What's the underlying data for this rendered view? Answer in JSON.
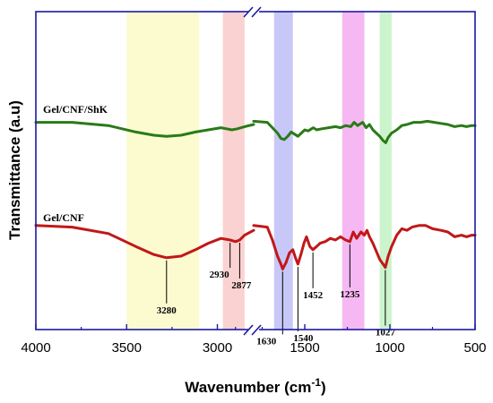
{
  "chart_data": {
    "type": "line",
    "title": "",
    "xlabel": "Wavenumber (cm",
    "xlabel_sup": "-1",
    "xlabel_close": ")",
    "ylabel": "Transmittance (a.u)",
    "x_axis": "reversed, broken",
    "x_segments": [
      [
        4000,
        2800
      ],
      [
        1800,
        500
      ]
    ],
    "x_ticks": [
      {
        "v": 4000,
        "label": "4000"
      },
      {
        "v": 3500,
        "label": "3500"
      },
      {
        "v": 3000,
        "label": "3000"
      },
      {
        "v": 1500,
        "label": "1500"
      },
      {
        "v": 1000,
        "label": "1000"
      },
      {
        "v": 500,
        "label": "500"
      }
    ],
    "y_ticks_shown": false,
    "grid": false,
    "legend": "none",
    "bands": [
      {
        "from": 3500,
        "to": 3100,
        "color": "#fbfbcf"
      },
      {
        "from": 2970,
        "to": 2850,
        "color": "#fbd2d2"
      },
      {
        "from": 1680,
        "to": 1570,
        "color": "#c8c8f8"
      },
      {
        "from": 1280,
        "to": 1150,
        "color": "#f6b8f2"
      },
      {
        "from": 1060,
        "to": 990,
        "color": "#ccf4cc"
      }
    ],
    "series": [
      {
        "name": "Gel/CNF/ShK",
        "color": "#2a7a18",
        "offset": 1.0,
        "segments": [
          [
            [
              4000,
              0.97
            ],
            [
              3800,
              0.97
            ],
            [
              3600,
              0.94
            ],
            [
              3450,
              0.88
            ],
            [
              3350,
              0.85
            ],
            [
              3280,
              0.84
            ],
            [
              3200,
              0.85
            ],
            [
              3120,
              0.88
            ],
            [
              3050,
              0.9
            ],
            [
              2980,
              0.92
            ],
            [
              2950,
              0.91
            ],
            [
              2920,
              0.9
            ],
            [
              2890,
              0.91
            ],
            [
              2850,
              0.93
            ],
            [
              2800,
              0.95
            ]
          ],
          [
            [
              1800,
              0.98
            ],
            [
              1720,
              0.97
            ],
            [
              1690,
              0.92
            ],
            [
              1660,
              0.87
            ],
            [
              1640,
              0.82
            ],
            [
              1620,
              0.81
            ],
            [
              1600,
              0.84
            ],
            [
              1580,
              0.88
            ],
            [
              1560,
              0.86
            ],
            [
              1540,
              0.84
            ],
            [
              1520,
              0.87
            ],
            [
              1500,
              0.9
            ],
            [
              1480,
              0.89
            ],
            [
              1460,
              0.91
            ],
            [
              1450,
              0.92
            ],
            [
              1430,
              0.9
            ],
            [
              1400,
              0.91
            ],
            [
              1360,
              0.92
            ],
            [
              1320,
              0.93
            ],
            [
              1290,
              0.92
            ],
            [
              1260,
              0.94
            ],
            [
              1230,
              0.93
            ],
            [
              1210,
              0.97
            ],
            [
              1190,
              0.94
            ],
            [
              1160,
              0.97
            ],
            [
              1140,
              0.92
            ],
            [
              1120,
              0.95
            ],
            [
              1100,
              0.9
            ],
            [
              1080,
              0.87
            ],
            [
              1060,
              0.84
            ],
            [
              1040,
              0.8
            ],
            [
              1025,
              0.78
            ],
            [
              1010,
              0.83
            ],
            [
              990,
              0.87
            ],
            [
              960,
              0.9
            ],
            [
              930,
              0.94
            ],
            [
              900,
              0.95
            ],
            [
              860,
              0.97
            ],
            [
              820,
              0.97
            ],
            [
              780,
              0.98
            ],
            [
              740,
              0.97
            ],
            [
              700,
              0.96
            ],
            [
              660,
              0.95
            ],
            [
              620,
              0.93
            ],
            [
              580,
              0.94
            ],
            [
              550,
              0.93
            ],
            [
              520,
              0.94
            ],
            [
              500,
              0.94
            ]
          ]
        ]
      },
      {
        "name": "Gel/CNF",
        "color": "#c01818",
        "offset": 0.0,
        "segments": [
          [
            [
              4000,
              0.99
            ],
            [
              3800,
              0.98
            ],
            [
              3600,
              0.94
            ],
            [
              3450,
              0.86
            ],
            [
              3350,
              0.81
            ],
            [
              3280,
              0.79
            ],
            [
              3200,
              0.8
            ],
            [
              3120,
              0.84
            ],
            [
              3050,
              0.88
            ],
            [
              2980,
              0.91
            ],
            [
              2930,
              0.9
            ],
            [
              2900,
              0.89
            ],
            [
              2877,
              0.9
            ],
            [
              2850,
              0.93
            ],
            [
              2800,
              0.96
            ]
          ],
          [
            [
              1800,
              0.99
            ],
            [
              1720,
              0.98
            ],
            [
              1690,
              0.9
            ],
            [
              1660,
              0.8
            ],
            [
              1640,
              0.75
            ],
            [
              1630,
              0.72
            ],
            [
              1610,
              0.76
            ],
            [
              1590,
              0.82
            ],
            [
              1570,
              0.84
            ],
            [
              1555,
              0.79
            ],
            [
              1540,
              0.75
            ],
            [
              1520,
              0.82
            ],
            [
              1505,
              0.88
            ],
            [
              1490,
              0.92
            ],
            [
              1470,
              0.86
            ],
            [
              1452,
              0.84
            ],
            [
              1430,
              0.86
            ],
            [
              1410,
              0.88
            ],
            [
              1380,
              0.89
            ],
            [
              1350,
              0.91
            ],
            [
              1320,
              0.9
            ],
            [
              1290,
              0.92
            ],
            [
              1260,
              0.9
            ],
            [
              1235,
              0.89
            ],
            [
              1215,
              0.95
            ],
            [
              1195,
              0.91
            ],
            [
              1170,
              0.95
            ],
            [
              1150,
              0.93
            ],
            [
              1135,
              0.96
            ],
            [
              1120,
              0.92
            ],
            [
              1100,
              0.88
            ],
            [
              1080,
              0.83
            ],
            [
              1060,
              0.78
            ],
            [
              1040,
              0.75
            ],
            [
              1027,
              0.73
            ],
            [
              1010,
              0.8
            ],
            [
              990,
              0.86
            ],
            [
              960,
              0.93
            ],
            [
              930,
              0.97
            ],
            [
              900,
              0.96
            ],
            [
              870,
              0.98
            ],
            [
              830,
              0.99
            ],
            [
              790,
              0.99
            ],
            [
              750,
              0.97
            ],
            [
              700,
              0.96
            ],
            [
              660,
              0.95
            ],
            [
              620,
              0.92
            ],
            [
              580,
              0.93
            ],
            [
              550,
              0.92
            ],
            [
              520,
              0.93
            ],
            [
              500,
              0.93
            ]
          ]
        ]
      }
    ],
    "peak_labels": [
      {
        "x": 3280,
        "series": 1,
        "label": "3280"
      },
      {
        "x": 2930,
        "series": 1,
        "label": "2930"
      },
      {
        "x": 2877,
        "series": 1,
        "label": "2877"
      },
      {
        "x": 1630,
        "series": 1,
        "label": "1630"
      },
      {
        "x": 1540,
        "series": 1,
        "label": "1540"
      },
      {
        "x": 1452,
        "series": 1,
        "label": "1452"
      },
      {
        "x": 1235,
        "series": 1,
        "label": "1235"
      },
      {
        "x": 1027,
        "series": 1,
        "label": "1027"
      }
    ]
  }
}
